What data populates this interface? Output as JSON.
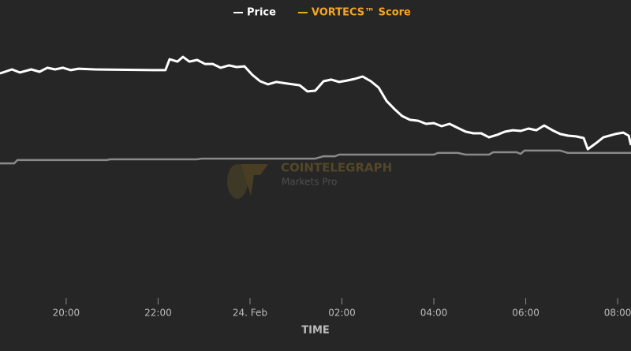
{
  "chart_data": {
    "type": "line",
    "x_label": "TIME",
    "watermark": {
      "brand": "COINTELEGRAPH",
      "product": "Markets Pro"
    },
    "xlim": [
      -5.44,
      8.29
    ],
    "xticks": [
      {
        "value": -4,
        "label": "20:00"
      },
      {
        "value": -2,
        "label": "22:00"
      },
      {
        "value": 0,
        "label": "24. Feb"
      },
      {
        "value": 2,
        "label": "02:00"
      },
      {
        "value": 4,
        "label": "04:00"
      },
      {
        "value": 6,
        "label": "06:00"
      },
      {
        "value": 8,
        "label": "08:00"
      }
    ],
    "ylim": [
      0,
      100
    ],
    "series": [
      {
        "name": "Price",
        "color": "#ffffff",
        "legend_color": "#ffffff",
        "x": [
          -5.44,
          -5.18,
          -5.01,
          -4.76,
          -4.58,
          -4.41,
          -4.24,
          -4.07,
          -3.9,
          -3.73,
          -3.38,
          -2.09,
          -1.84,
          -1.75,
          -1.58,
          -1.46,
          -1.32,
          -1.15,
          -0.98,
          -0.81,
          -0.64,
          -0.46,
          -0.29,
          -0.12,
          0.05,
          0.22,
          0.39,
          0.57,
          0.82,
          1.08,
          1.25,
          1.42,
          1.6,
          1.77,
          1.94,
          2.11,
          2.28,
          2.45,
          2.63,
          2.8,
          2.97,
          3.14,
          3.31,
          3.48,
          3.66,
          3.83,
          4.0,
          4.17,
          4.34,
          4.52,
          4.69,
          4.86,
          5.03,
          5.2,
          5.37,
          5.55,
          5.72,
          5.89,
          6.06,
          6.23,
          6.4,
          6.58,
          6.75,
          6.92,
          7.09,
          7.26,
          7.35,
          7.52,
          7.69,
          7.95,
          8.12,
          8.24,
          8.29
        ],
        "values": [
          82.3,
          84,
          82.7,
          84,
          83,
          84.7,
          84,
          84.7,
          83.7,
          84.3,
          84,
          83.7,
          83.7,
          88.3,
          87.3,
          89.3,
          87.3,
          88,
          86.3,
          86.3,
          84.7,
          85.7,
          85,
          85.3,
          81.7,
          79,
          77.7,
          78.7,
          78,
          77.3,
          74.7,
          75,
          79,
          79.7,
          78.7,
          79.3,
          80,
          81,
          79,
          76.3,
          70.7,
          67.3,
          64.3,
          62.7,
          62.3,
          61,
          61.3,
          60,
          61,
          59.3,
          57.7,
          57,
          57,
          55.3,
          56.3,
          57.7,
          58.3,
          58,
          59,
          58.3,
          60.3,
          58.3,
          56.7,
          56,
          55.7,
          55,
          50.3,
          52.7,
          55.3,
          56.7,
          57.3,
          56,
          52
        ]
      },
      {
        "name": "VORTECS™ Score",
        "color": "#8a8a8a",
        "legend_color": "#f5a524",
        "x": [
          -5.44,
          -5.13,
          -5.06,
          -3.12,
          -3.04,
          -1.15,
          -1.06,
          1.42,
          1.6,
          1.85,
          1.94,
          4.0,
          4.09,
          4.52,
          4.69,
          5.2,
          5.29,
          5.8,
          5.89,
          5.97,
          6.75,
          6.92,
          8.29
        ],
        "values": [
          44.3,
          44.3,
          45.7,
          45.7,
          46,
          46,
          46.3,
          46.3,
          47.3,
          47.3,
          48,
          48,
          48.7,
          48.7,
          48,
          48,
          49,
          49,
          48.3,
          49.7,
          49.7,
          48.7,
          48.7
        ]
      }
    ]
  }
}
